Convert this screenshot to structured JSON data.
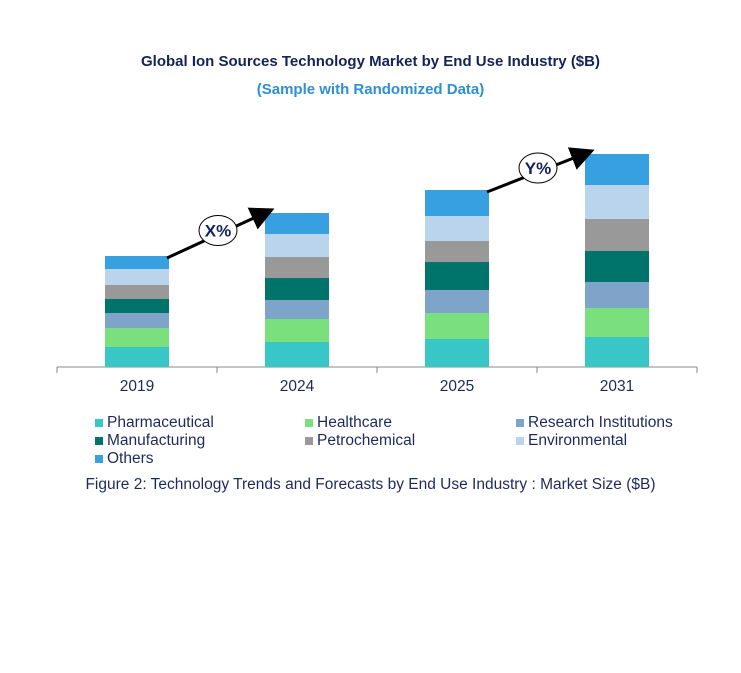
{
  "chart_data": {
    "type": "stacked-bar",
    "title": "Global Ion Sources Technology Market by End Use Industry ($B)",
    "subtitle": "(Sample with Randomized Data)",
    "caption": "Figure 2: Technology  Trends  and Forecasts by End Use Industry  : Market Size ($B)",
    "categories": [
      "2019",
      "2024",
      "2025",
      "2031"
    ],
    "series": [
      {
        "name": "Pharmaceutical",
        "color": "#38c6c6",
        "values": [
          2.0,
          2.5,
          2.8,
          3.0
        ]
      },
      {
        "name": "Healthcare",
        "color": "#7ae07d",
        "values": [
          1.9,
          2.3,
          2.6,
          2.9
        ]
      },
      {
        "name": "Research Institutions",
        "color": "#7fa4c9",
        "values": [
          1.5,
          1.9,
          2.3,
          2.6
        ]
      },
      {
        "name": "Manufacturing",
        "color": "#00736b",
        "values": [
          1.4,
          2.2,
          2.8,
          3.1
        ]
      },
      {
        "name": "Petrochemical",
        "color": "#999999",
        "values": [
          1.4,
          2.1,
          2.1,
          3.2
        ]
      },
      {
        "name": "Environmental",
        "color": "#bbd4ee",
        "values": [
          1.6,
          2.3,
          2.5,
          3.4
        ]
      },
      {
        "name": "Others",
        "color": "#36a0e0",
        "values": [
          1.3,
          2.1,
          2.6,
          3.1
        ]
      }
    ],
    "annotations": [
      {
        "label": "X%",
        "from": "2019",
        "to": "2024"
      },
      {
        "label": "Y%",
        "from": "2025",
        "to": "2031"
      }
    ],
    "legend_position": "bottom",
    "grid": false,
    "y_axis_shown": false
  }
}
